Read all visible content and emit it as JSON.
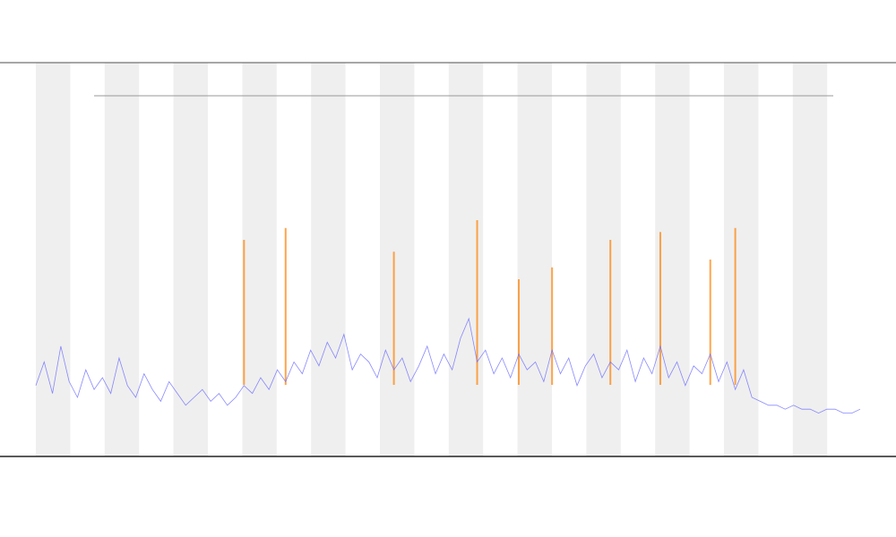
{
  "chart_data": {
    "type": "line",
    "x": [
      0,
      1,
      2,
      3,
      4,
      5,
      6,
      7,
      8,
      9,
      10,
      11,
      12,
      13,
      14,
      15,
      16,
      17,
      18,
      19,
      20,
      21,
      22,
      23,
      24,
      25,
      26,
      27,
      28,
      29,
      30,
      31,
      32,
      33,
      34,
      35,
      36,
      37,
      38,
      39,
      40,
      41,
      42,
      43,
      44,
      45,
      46,
      47,
      48,
      49,
      50,
      51,
      52,
      53,
      54,
      55,
      56,
      57,
      58,
      59,
      60,
      61,
      62,
      63,
      64,
      65,
      66,
      67,
      68,
      69,
      70,
      71,
      72,
      73,
      74,
      75,
      76,
      77,
      78,
      79,
      80,
      81,
      82,
      83,
      84,
      85,
      86,
      87,
      88,
      89,
      90,
      91,
      92,
      93,
      94,
      95,
      96,
      97,
      98,
      99
    ],
    "xlim": [
      0,
      99
    ],
    "ylim": [
      0,
      100
    ],
    "series": [
      {
        "color": "#6b6bff",
        "values": [
          18,
          24,
          16,
          28,
          19,
          15,
          22,
          17,
          20,
          16,
          25,
          18,
          15,
          21,
          17,
          14,
          19,
          16,
          13,
          15,
          17,
          14,
          16,
          13,
          15,
          18,
          16,
          20,
          17,
          22,
          19,
          24,
          21,
          27,
          23,
          29,
          25,
          31,
          22,
          26,
          24,
          20,
          27,
          22,
          25,
          19,
          23,
          28,
          21,
          26,
          22,
          30,
          35,
          24,
          27,
          21,
          25,
          20,
          26,
          22,
          24,
          19,
          27,
          21,
          25,
          18,
          23,
          26,
          20,
          24,
          22,
          27,
          19,
          25,
          21,
          28,
          20,
          24,
          18,
          23,
          21,
          26,
          19,
          24,
          17,
          22,
          15,
          14,
          13,
          13,
          12,
          13,
          12,
          12,
          11,
          12,
          12,
          11,
          11,
          12
        ]
      },
      {
        "color": "#ff8000",
        "values": [
          null,
          null,
          null,
          null,
          null,
          null,
          null,
          null,
          null,
          null,
          null,
          null,
          null,
          null,
          null,
          null,
          null,
          null,
          null,
          null,
          null,
          null,
          null,
          null,
          null,
          55,
          null,
          null,
          null,
          null,
          58,
          null,
          null,
          null,
          null,
          null,
          null,
          null,
          null,
          null,
          null,
          null,
          null,
          52,
          null,
          null,
          null,
          null,
          null,
          null,
          null,
          null,
          null,
          60,
          null,
          null,
          null,
          null,
          45,
          null,
          null,
          null,
          48,
          null,
          null,
          null,
          null,
          null,
          null,
          55,
          null,
          null,
          null,
          null,
          null,
          57,
          null,
          null,
          null,
          null,
          null,
          50,
          null,
          null,
          58,
          null,
          null,
          null,
          null,
          null,
          null,
          null,
          null,
          null,
          null,
          null,
          null,
          null,
          null,
          null
        ]
      }
    ]
  }
}
